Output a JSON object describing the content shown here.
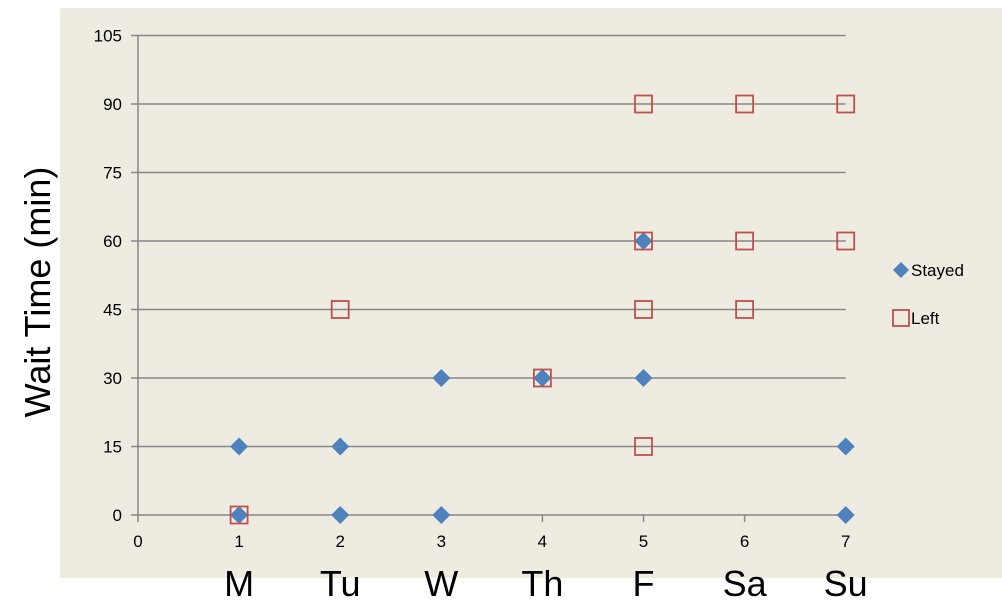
{
  "chart_data": {
    "type": "scatter",
    "ylabel": "Wait Time (min)",
    "xlim": [
      0,
      7
    ],
    "ylim": [
      0,
      105
    ],
    "x_ticks": [
      0,
      1,
      2,
      3,
      4,
      5,
      6,
      7
    ],
    "y_ticks": [
      0,
      15,
      30,
      45,
      60,
      75,
      90,
      105
    ],
    "grid": "horizontal",
    "legend_position": "right",
    "day_labels": [
      {
        "x": 1,
        "label": "M"
      },
      {
        "x": 2,
        "label": "Tu"
      },
      {
        "x": 3,
        "label": "W"
      },
      {
        "x": 4,
        "label": "Th"
      },
      {
        "x": 5,
        "label": "F"
      },
      {
        "x": 6,
        "label": "Sa"
      },
      {
        "x": 7,
        "label": "Su"
      }
    ],
    "series": [
      {
        "name": "Stayed",
        "marker": "diamond",
        "color": "#4F81BD",
        "points": [
          {
            "x": 1,
            "y": 0
          },
          {
            "x": 1,
            "y": 15
          },
          {
            "x": 2,
            "y": 0
          },
          {
            "x": 2,
            "y": 15
          },
          {
            "x": 3,
            "y": 0
          },
          {
            "x": 3,
            "y": 30
          },
          {
            "x": 4,
            "y": 30
          },
          {
            "x": 5,
            "y": 30
          },
          {
            "x": 5,
            "y": 60
          },
          {
            "x": 7,
            "y": 0
          },
          {
            "x": 7,
            "y": 15
          }
        ]
      },
      {
        "name": "Left",
        "marker": "open-square",
        "color": "#C0504D",
        "points": [
          {
            "x": 1,
            "y": 0
          },
          {
            "x": 2,
            "y": 45
          },
          {
            "x": 4,
            "y": 30
          },
          {
            "x": 5,
            "y": 15
          },
          {
            "x": 5,
            "y": 45
          },
          {
            "x": 5,
            "y": 60
          },
          {
            "x": 5,
            "y": 90
          },
          {
            "x": 6,
            "y": 45
          },
          {
            "x": 6,
            "y": 60
          },
          {
            "x": 6,
            "y": 90
          },
          {
            "x": 7,
            "y": 60
          },
          {
            "x": 7,
            "y": 90
          }
        ]
      }
    ]
  },
  "colors": {
    "plot_background": "#EEECE1",
    "gridline": "#878787",
    "axis": "#878787"
  }
}
